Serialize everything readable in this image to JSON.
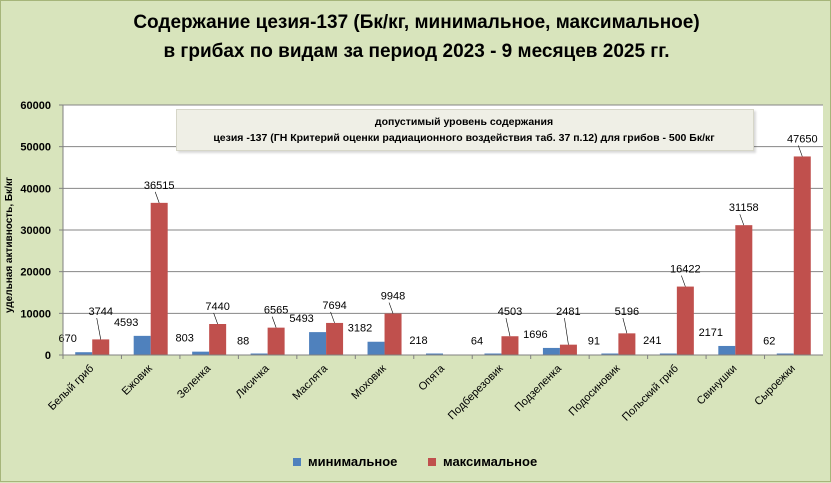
{
  "title": {
    "line1": "Содержание цезия-137 (Бк/кг, минимальное, максимальное)",
    "line2": "в грибах по видам  за период 2023 -  9 месяцев 2025 гг."
  },
  "note": {
    "line1": "допустимый уровень содержания",
    "line2": "цезия -137  (ГН Критерий оценки радиационного воздействия таб. 37 п.12) для грибов - 500 Бк/кг"
  },
  "colors": {
    "background": "#d8e4bc",
    "plot_area": "#ffffff",
    "minimal": "#4f81bd",
    "maximal": "#c0504d"
  },
  "chart_data": {
    "type": "bar",
    "ylabel": "удельная активность, Бк/кг",
    "xlabel": "",
    "ylim": [
      0,
      60000
    ],
    "yticks": [
      "0",
      "10000",
      "20000",
      "30000",
      "40000",
      "50000",
      "60000"
    ],
    "grid": true,
    "legend_position": "bottom",
    "categories": [
      "Белый гриб",
      "Ежовик",
      "Зеленка",
      "Лисичка",
      "Маслята",
      "Моховик",
      "Опята",
      "Подберезовик",
      "Подзеленка",
      "Подосиновик",
      "Польский гриб",
      "Свинушки",
      "Сыроежки"
    ],
    "series": [
      {
        "name": "минимальное",
        "values": [
          670,
          4593,
          803,
          88,
          5493,
          3182,
          218,
          64,
          1696,
          91,
          241,
          2171,
          62
        ]
      },
      {
        "name": "максимальное",
        "values": [
          3744,
          36515,
          7440,
          6565,
          7694,
          9948,
          null,
          4503,
          2481,
          5196,
          16422,
          31158,
          47650
        ]
      }
    ]
  }
}
